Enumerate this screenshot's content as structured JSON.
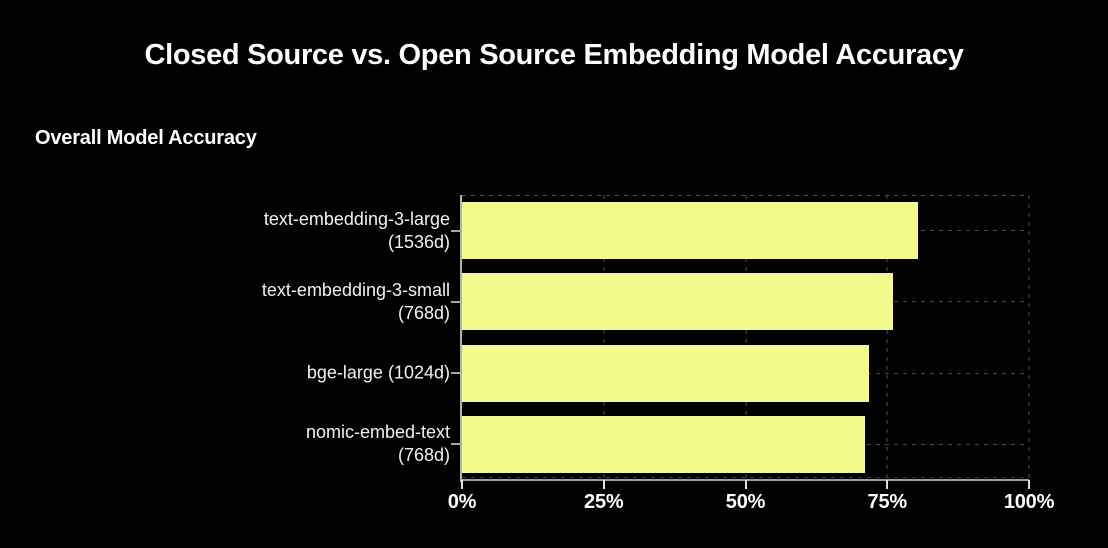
{
  "window": {
    "background": "#000000"
  },
  "chart": {
    "title": "Closed Source vs. Open Source Embedding Model Accuracy",
    "section_label": "Overall Model Accuracy"
  },
  "chart_data": {
    "type": "bar",
    "orientation": "horizontal",
    "title": "Closed Source vs. Open Source Embedding Model Accuracy",
    "panel_label": "Overall Model Accuracy",
    "categories": [
      "text-embedding-3-large (1536d)",
      "text-embedding-3-small (768d)",
      "bge-large (1024d)",
      "nomic-embed-text (768d)"
    ],
    "category_display_lines": [
      [
        "text-embedding-3-large",
        "(1536d)"
      ],
      [
        "text-embedding-3-small",
        "(768d)"
      ],
      [
        "bge-large (1024d)"
      ],
      [
        "nomic-embed-text",
        "(768d)"
      ]
    ],
    "values": [
      80.5,
      76.0,
      71.7,
      71.0
    ],
    "unit": "%",
    "xlabel": "",
    "ylabel": "",
    "xlim": [
      0,
      100
    ],
    "x_ticks": [
      {
        "value": 0,
        "label": "0%"
      },
      {
        "value": 25,
        "label": "25%"
      },
      {
        "value": 50,
        "label": "50%"
      },
      {
        "value": 75,
        "label": "75%"
      },
      {
        "value": 100,
        "label": "100%"
      }
    ],
    "grid": "dashed",
    "legend_position": "none",
    "bar_color": "#f4f98c",
    "background_color": "#000000",
    "text_color": "#ffffff"
  }
}
